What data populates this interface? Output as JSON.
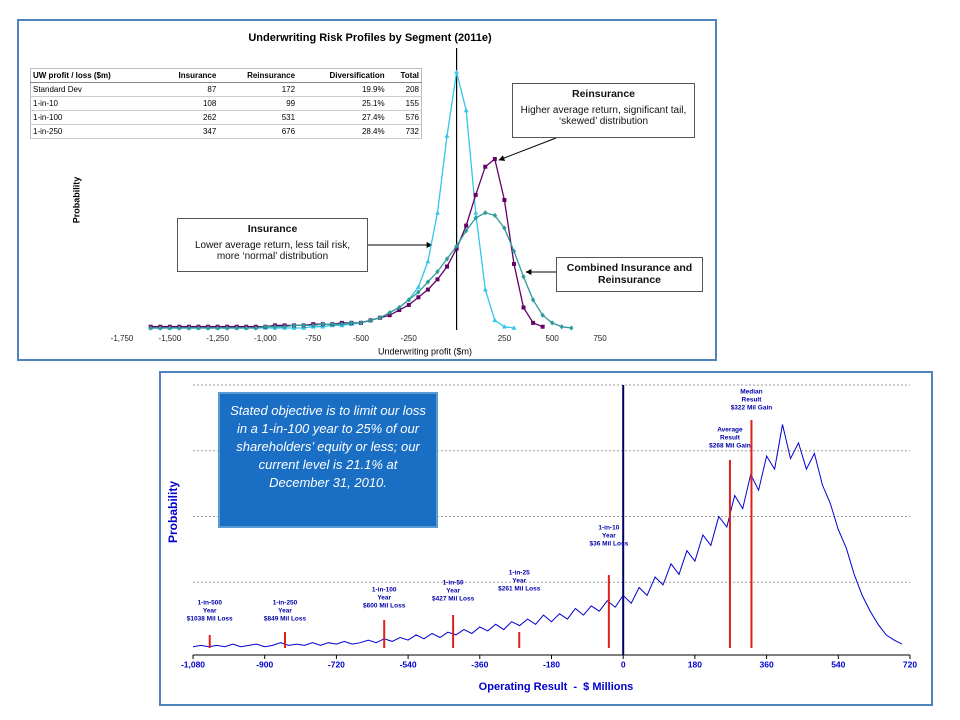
{
  "chart_data": [
    {
      "type": "line",
      "title": "Underwriting Risk Profiles by Segment (2011e)",
      "xlabel": "Underwriting profit ($m)",
      "ylabel": "Probability",
      "xlim": [
        -1750,
        750
      ],
      "ylim": [
        0,
        100
      ],
      "xticks": [
        {
          "value": -1750,
          "label": "-1,750"
        },
        {
          "value": -1500,
          "label": "-1,500"
        },
        {
          "value": -1250,
          "label": "-1,250"
        },
        {
          "value": -1000,
          "label": "-1,000"
        },
        -750,
        -500,
        -250,
        250,
        500,
        750
      ],
      "x": [
        -1600,
        -1550,
        -1500,
        -1450,
        -1400,
        -1350,
        -1300,
        -1250,
        -1200,
        -1150,
        -1100,
        -1050,
        -1000,
        -950,
        -900,
        -850,
        -800,
        -750,
        -700,
        -650,
        -600,
        -550,
        -500,
        -450,
        -400,
        -350,
        -300,
        -250,
        -200,
        -150,
        -100,
        -50,
        0,
        50,
        100,
        150,
        200,
        250,
        300,
        350,
        400,
        450,
        500,
        550,
        600
      ],
      "series": [
        {
          "name": "Insurance",
          "color": "#33c6ea",
          "marker": "triangle",
          "note": "Lower average return, less tail risk, more ‘normal’ distribution",
          "values": [
            0,
            0,
            0,
            0,
            0,
            0,
            0,
            0,
            0,
            0,
            0,
            0,
            0,
            0,
            0,
            0,
            0,
            0.5,
            0.5,
            1,
            1,
            1.5,
            2,
            3,
            4,
            6,
            8,
            11,
            16,
            26,
            45,
            75,
            100,
            85,
            45,
            15,
            3,
            0.5,
            0,
            null,
            null,
            null,
            null,
            null,
            null
          ]
        },
        {
          "name": "Reinsurance",
          "color": "#660066",
          "marker": "square",
          "note": "Higher average return, significant tail, ‘skewed’ distribution",
          "values": [
            0.5,
            0.5,
            0.5,
            0.5,
            0.5,
            0.5,
            0.5,
            0.5,
            0.5,
            0.5,
            0.5,
            0.5,
            0.5,
            1,
            1,
            1,
            1,
            1.5,
            1.5,
            1.5,
            2,
            2,
            2,
            3,
            4,
            5,
            7,
            9,
            12,
            15,
            19,
            24,
            31,
            40,
            52,
            63,
            66,
            50,
            25,
            8,
            2,
            0.5,
            null,
            null,
            null
          ]
        },
        {
          "name": "Combined Insurance and Reinsurance",
          "color": "#2f9a9a",
          "marker": "diamond",
          "values": [
            0,
            0,
            0,
            0,
            0,
            0,
            0,
            0,
            0,
            0,
            0,
            0,
            0.5,
            0.5,
            0.5,
            1,
            1,
            1,
            1.5,
            1.5,
            1.5,
            2,
            2,
            3,
            4,
            6,
            8,
            11,
            14,
            18,
            22,
            27,
            32,
            38,
            43,
            45,
            44,
            39,
            30,
            20,
            11,
            5,
            2,
            0.5,
            0
          ]
        }
      ],
      "table": {
        "columns": [
          "UW profit / loss ($m)",
          "Insurance",
          "Reinsurance",
          "Diversification",
          "Total"
        ],
        "rows": [
          [
            "Standard Dev",
            "87",
            "172",
            "19.9%",
            "208"
          ],
          [
            "1-in-10",
            "108",
            "99",
            "25.1%",
            "155"
          ],
          [
            "1-in-100",
            "262",
            "531",
            "27.4%",
            "576"
          ],
          [
            "1-in-250",
            "347",
            "676",
            "28.4%",
            "732"
          ]
        ]
      }
    },
    {
      "type": "line",
      "xlabel": "Operating Result  -  $ Millions",
      "ylabel": "Probability",
      "xlim": [
        -1080,
        720
      ],
      "ylim": [
        0,
        100
      ],
      "grid": true,
      "color": "#0000d0",
      "xticks": [
        {
          "value": -1080,
          "label": "-1,080"
        },
        -900,
        -720,
        -540,
        -360,
        -180,
        0,
        180,
        360,
        540,
        720
      ],
      "x": [
        -1080,
        -1060,
        -1040,
        -1020,
        -1000,
        -980,
        -960,
        -940,
        -920,
        -900,
        -880,
        -860,
        -840,
        -820,
        -800,
        -780,
        -760,
        -740,
        -720,
        -700,
        -680,
        -660,
        -640,
        -620,
        -600,
        -580,
        -560,
        -540,
        -520,
        -500,
        -480,
        -460,
        -440,
        -420,
        -400,
        -380,
        -360,
        -340,
        -320,
        -300,
        -280,
        -260,
        -240,
        -220,
        -200,
        -180,
        -160,
        -140,
        -120,
        -100,
        -80,
        -60,
        -40,
        -20,
        0,
        20,
        40,
        60,
        80,
        100,
        120,
        140,
        160,
        180,
        200,
        220,
        240,
        260,
        280,
        300,
        320,
        340,
        360,
        380,
        400,
        420,
        440,
        460,
        480,
        500,
        520,
        540,
        560,
        580,
        600,
        620,
        640,
        660,
        680,
        700
      ],
      "values": [
        0.5,
        1,
        0.5,
        1,
        0.5,
        1.5,
        0.5,
        1,
        1.5,
        0.5,
        1,
        2,
        1,
        1.5,
        1,
        2,
        1,
        2,
        1.5,
        2.5,
        1.5,
        2,
        3,
        2,
        3.5,
        2.5,
        4,
        3,
        5,
        3.5,
        5.5,
        4,
        6,
        5,
        7,
        5.5,
        8,
        6.5,
        9,
        7,
        10,
        8.5,
        11,
        9,
        12.5,
        10,
        13,
        11,
        15,
        12.5,
        16,
        14,
        18,
        15.5,
        20,
        17,
        23,
        20,
        27,
        24,
        32,
        28,
        37,
        33,
        43,
        39,
        50,
        46,
        58,
        53,
        66,
        60,
        73,
        68,
        85,
        72,
        78,
        68,
        74,
        62,
        55,
        45,
        38,
        28,
        20,
        14,
        9,
        5,
        3,
        1.5
      ],
      "marker_color": "#e0201b",
      "markers": [
        {
          "value": -1038,
          "lines": [
            "1-in-500",
            "Year",
            "$1038 Mil Loss"
          ]
        },
        {
          "value": -849,
          "lines": [
            "1-in-250",
            "Year",
            "$849 Mil Loss"
          ]
        },
        {
          "value": -600,
          "lines": [
            "1-in-100",
            "Year",
            "$600 Mil Loss"
          ]
        },
        {
          "value": -427,
          "lines": [
            "1-in-50",
            "Year",
            "$427 Mil Loss"
          ]
        },
        {
          "value": -261,
          "lines": [
            "1-in-25",
            "Year",
            "$261 Mil Loss"
          ]
        },
        {
          "value": -36,
          "lines": [
            "1-in-10",
            "Year",
            "$36 Mil Loss"
          ]
        },
        {
          "value": 268,
          "lines": [
            "Average",
            "Result",
            "$268 Mil Gain"
          ]
        },
        {
          "value": 322,
          "lines": [
            "Median",
            "Result",
            "$322 Mil Gain"
          ]
        }
      ],
      "annotation": "Stated objective is to limit our loss in a 1-in-100 year to 25% of our shareholders’ equity or less; our current level is 21.1% at December 31, 2010."
    }
  ]
}
